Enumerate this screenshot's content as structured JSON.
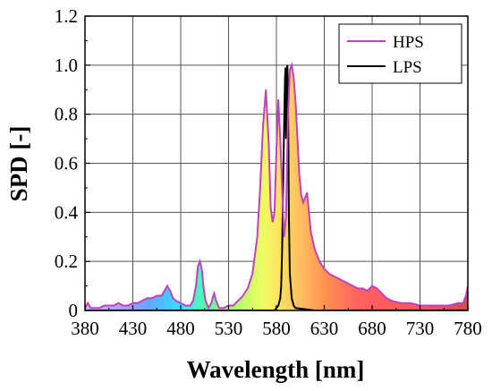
{
  "chart_data": {
    "type": "area",
    "xlabel": "Wavelength [nm]",
    "ylabel": "SPD [-]",
    "xlim": [
      380,
      780
    ],
    "ylim": [
      0,
      1.2
    ],
    "x_ticks": [
      380,
      430,
      480,
      530,
      580,
      630,
      680,
      730,
      780
    ],
    "x_tick_labels": [
      "380",
      "430",
      "480",
      "530",
      "580",
      "630",
      "680",
      "730",
      "780"
    ],
    "y_ticks": [
      0,
      0.2,
      0.4,
      0.6,
      0.8,
      1.0,
      1.2
    ],
    "y_tick_labels": [
      "0",
      "0.2",
      "0.4",
      "0.6",
      "0.8",
      "1.0",
      "1.2"
    ],
    "grid": true,
    "legend_position": "top-right",
    "fill": "visible-spectrum gradient under HPS curve",
    "series": [
      {
        "name": "HPS",
        "color": "#c040c0",
        "x": [
          380,
          383,
          386,
          390,
          395,
          400,
          405,
          410,
          415,
          420,
          425,
          430,
          435,
          440,
          445,
          450,
          455,
          460,
          463,
          466,
          469,
          472,
          475,
          480,
          485,
          490,
          493,
          496,
          498,
          500,
          502,
          504,
          506,
          509,
          512,
          514,
          515,
          517,
          520,
          525,
          530,
          535,
          540,
          545,
          550,
          555,
          560,
          563,
          566,
          569,
          572,
          574,
          576,
          578,
          580,
          582,
          584,
          586,
          588,
          590,
          592,
          594,
          596,
          598,
          600,
          602,
          604,
          606,
          608,
          610,
          612,
          614,
          616,
          620,
          625,
          630,
          635,
          640,
          645,
          650,
          655,
          660,
          665,
          670,
          675,
          680,
          685,
          690,
          695,
          700,
          710,
          720,
          730,
          740,
          750,
          760,
          770,
          775,
          778,
          780
        ],
        "y": [
          0.01,
          0.03,
          0.01,
          0.01,
          0.01,
          0.02,
          0.02,
          0.02,
          0.03,
          0.02,
          0.02,
          0.03,
          0.03,
          0.04,
          0.05,
          0.05,
          0.06,
          0.06,
          0.08,
          0.1,
          0.08,
          0.05,
          0.04,
          0.03,
          0.02,
          0.02,
          0.04,
          0.1,
          0.18,
          0.2,
          0.17,
          0.09,
          0.04,
          0.01,
          0.03,
          0.06,
          0.07,
          0.04,
          0.01,
          0.01,
          0.02,
          0.02,
          0.04,
          0.06,
          0.09,
          0.15,
          0.3,
          0.5,
          0.75,
          0.9,
          0.68,
          0.42,
          0.36,
          0.4,
          0.65,
          0.86,
          0.7,
          0.5,
          0.3,
          0.38,
          0.78,
          0.98,
          1.0,
          0.95,
          0.85,
          0.7,
          0.55,
          0.47,
          0.44,
          0.46,
          0.48,
          0.4,
          0.32,
          0.25,
          0.2,
          0.17,
          0.15,
          0.14,
          0.13,
          0.12,
          0.11,
          0.1,
          0.09,
          0.09,
          0.08,
          0.1,
          0.09,
          0.07,
          0.05,
          0.04,
          0.03,
          0.03,
          0.02,
          0.02,
          0.02,
          0.02,
          0.03,
          0.03,
          0.06,
          0.1
        ]
      },
      {
        "name": "LPS",
        "color": "#000000",
        "x": [
          380,
          560,
          578,
          580,
          582,
          584,
          585,
          586,
          587,
          588,
          589,
          589.5,
          590,
          590.5,
          591,
          591.5,
          592,
          592.5,
          593,
          594,
          596,
          598,
          600,
          620,
          780
        ],
        "y": [
          0,
          0,
          0,
          0.01,
          0.02,
          0.05,
          0.1,
          0.25,
          0.5,
          0.75,
          0.95,
          0.99,
          0.7,
          0.8,
          0.99,
          1.0,
          0.9,
          0.7,
          0.4,
          0.15,
          0.05,
          0.02,
          0.01,
          0,
          0
        ]
      }
    ]
  }
}
